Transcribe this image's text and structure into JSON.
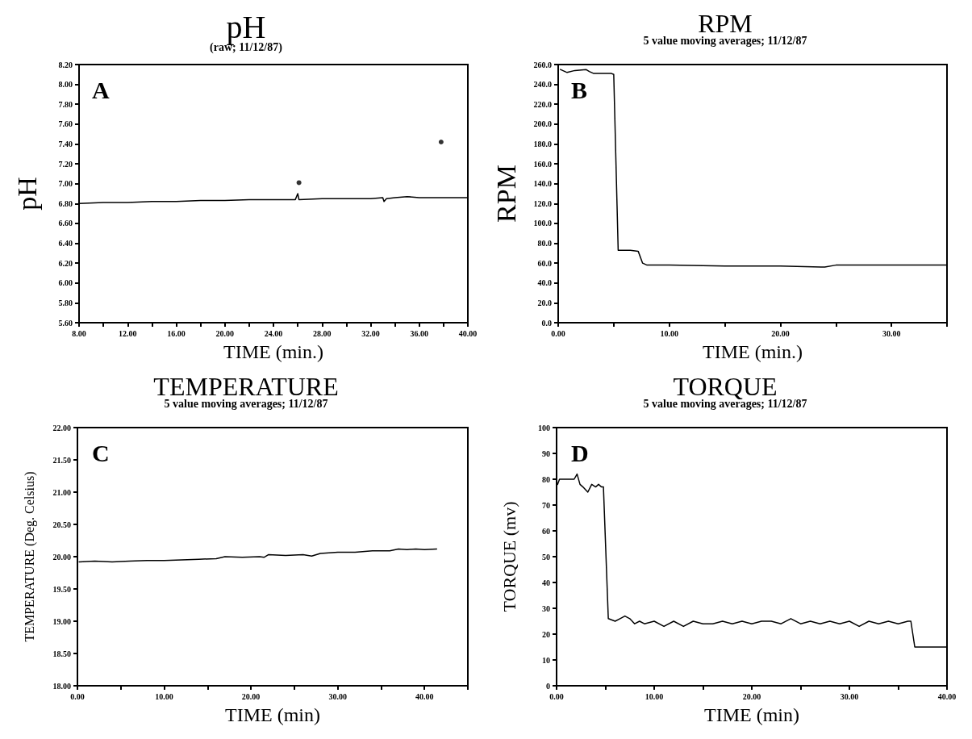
{
  "chart_data": [
    {
      "type": "line",
      "title": "pH",
      "subtitle": "(raw; 11/12/87)",
      "xlabel": "TIME (min.)",
      "ylabel": "pH",
      "annotations": [
        "A"
      ],
      "series": [
        {
          "color": "#000000",
          "x": [
            8,
            10,
            12,
            14,
            16,
            18,
            20,
            22,
            24,
            25.8,
            26,
            26.1,
            28,
            30,
            32,
            33,
            33.1,
            33.3,
            34,
            35,
            36,
            38,
            40
          ],
          "values": [
            6.8,
            6.81,
            6.81,
            6.82,
            6.82,
            6.83,
            6.83,
            6.84,
            6.84,
            6.84,
            6.9,
            6.84,
            6.85,
            6.85,
            6.85,
            6.86,
            6.82,
            6.85,
            6.86,
            6.87,
            6.86,
            6.86,
            6.86
          ]
        },
        {
          "type": "scatter",
          "color": "#000000",
          "x": [
            26.1,
            37.8
          ],
          "values": [
            7.01,
            7.42
          ]
        }
      ],
      "xlim": [
        8,
        40
      ],
      "xticks": [
        {
          "value": 8,
          "label": "8.00"
        },
        {
          "value": 10,
          "label": null
        },
        {
          "value": 12,
          "label": "12.00"
        },
        {
          "value": 14,
          "label": null
        },
        {
          "value": 16,
          "label": "16.00"
        },
        {
          "value": 18,
          "label": null
        },
        {
          "value": 20,
          "label": "20.00"
        },
        {
          "value": 22,
          "label": null
        },
        {
          "value": 24,
          "label": "24.00"
        },
        {
          "value": 26,
          "label": null
        },
        {
          "value": 28,
          "label": "28.00"
        },
        {
          "value": 30,
          "label": null
        },
        {
          "value": 32,
          "label": "32.00"
        },
        {
          "value": 34,
          "label": null
        },
        {
          "value": 36,
          "label": "36.00"
        },
        {
          "value": 38,
          "label": null
        },
        {
          "value": 40,
          "label": "40.00"
        }
      ],
      "ylim": [
        5.6,
        8.2
      ],
      "yticks": [
        {
          "value": 5.6,
          "label": "5.60"
        },
        {
          "value": 5.8,
          "label": "5.80"
        },
        {
          "value": 6,
          "label": "6.00"
        },
        {
          "value": 6.2,
          "label": "6.20"
        },
        {
          "value": 6.4,
          "label": "6.40"
        },
        {
          "value": 6.6,
          "label": "6.60"
        },
        {
          "value": 6.8,
          "label": "6.80"
        },
        {
          "value": 7,
          "label": "7.00"
        },
        {
          "value": 7.2,
          "label": "7.20"
        },
        {
          "value": 7.4,
          "label": "7.40"
        },
        {
          "value": 7.6,
          "label": "7.60"
        },
        {
          "value": 7.8,
          "label": "7.80"
        },
        {
          "value": 8,
          "label": "8.00"
        },
        {
          "value": 8.2,
          "label": "8.20"
        }
      ]
    },
    {
      "type": "line",
      "title": "RPM",
      "subtitle": "5 value moving averages; 11/12/87",
      "xlabel": "TIME (min.)",
      "ylabel": "RPM",
      "annotations": [
        "B"
      ],
      "series": [
        {
          "color": "#000000",
          "x": [
            0.2,
            0.8,
            1.5,
            2.5,
            2.8,
            3.2,
            4.8,
            5.0,
            5.4,
            6.5,
            7.2,
            7.6,
            8.0,
            10,
            15,
            20,
            24,
            25,
            27,
            30,
            35
          ],
          "values": [
            255,
            252,
            254,
            255,
            253,
            251,
            251,
            250,
            73,
            73,
            72,
            60,
            58,
            58,
            57,
            57,
            56,
            58,
            58,
            58,
            58
          ]
        }
      ],
      "xlim": [
        0,
        35
      ],
      "xticks": [
        {
          "value": 0,
          "label": "0.00"
        },
        {
          "value": 5,
          "label": null
        },
        {
          "value": 10,
          "label": "10.00"
        },
        {
          "value": 15,
          "label": null
        },
        {
          "value": 20,
          "label": "20.00"
        },
        {
          "value": 25,
          "label": null
        },
        {
          "value": 30,
          "label": "30.00"
        },
        {
          "value": 35,
          "label": null
        }
      ],
      "ylim": [
        0,
        260
      ],
      "yticks": [
        {
          "value": 0,
          "label": "0.0"
        },
        {
          "value": 20,
          "label": "20.0"
        },
        {
          "value": 40,
          "label": "40.0"
        },
        {
          "value": 60,
          "label": "60.0"
        },
        {
          "value": 80,
          "label": "80.0"
        },
        {
          "value": 100,
          "label": "100.0"
        },
        {
          "value": 120,
          "label": "120.0"
        },
        {
          "value": 140,
          "label": "140.0"
        },
        {
          "value": 160,
          "label": "160.0"
        },
        {
          "value": 180,
          "label": "180.0"
        },
        {
          "value": 200,
          "label": "200.0"
        },
        {
          "value": 220,
          "label": "220.0"
        },
        {
          "value": 240,
          "label": "240.0"
        },
        {
          "value": 260,
          "label": "260.0"
        }
      ]
    },
    {
      "type": "line",
      "title": "TEMPERATURE",
      "subtitle": "5 value moving averages; 11/12/87",
      "xlabel": "TIME (min)",
      "ylabel": "TEMPERATURE (Deg. Celsius)",
      "annotations": [
        "C"
      ],
      "series": [
        {
          "color": "#000000",
          "x": [
            0.2,
            2,
            4,
            6,
            8,
            10,
            12,
            14,
            16,
            17,
            19,
            21,
            21.5,
            22,
            24,
            26,
            27,
            28,
            30,
            32,
            34,
            36,
            37,
            38,
            39,
            40,
            41.4
          ],
          "values": [
            19.92,
            19.93,
            19.92,
            19.93,
            19.94,
            19.94,
            19.95,
            19.96,
            19.97,
            20.0,
            19.99,
            20.0,
            19.99,
            20.03,
            20.02,
            20.03,
            20.01,
            20.05,
            20.07,
            20.07,
            20.09,
            20.09,
            20.12,
            20.11,
            20.12,
            20.11,
            20.12
          ]
        }
      ],
      "xlim": [
        0,
        45
      ],
      "xticks": [
        {
          "value": 0,
          "label": "0.00"
        },
        {
          "value": 5,
          "label": null
        },
        {
          "value": 10,
          "label": "10.00"
        },
        {
          "value": 15,
          "label": null
        },
        {
          "value": 20,
          "label": "20.00"
        },
        {
          "value": 25,
          "label": null
        },
        {
          "value": 30,
          "label": "30.00"
        },
        {
          "value": 35,
          "label": null
        },
        {
          "value": 40,
          "label": "40.00"
        },
        {
          "value": 45,
          "label": null
        }
      ],
      "ylim": [
        18,
        22
      ],
      "yticks": [
        {
          "value": 18,
          "label": "18.00"
        },
        {
          "value": 18.5,
          "label": "18.50"
        },
        {
          "value": 19,
          "label": "19.00"
        },
        {
          "value": 19.5,
          "label": "19.50"
        },
        {
          "value": 20,
          "label": "20.00"
        },
        {
          "value": 20.5,
          "label": "20.50"
        },
        {
          "value": 21,
          "label": "21.00"
        },
        {
          "value": 21.5,
          "label": "21.50"
        },
        {
          "value": 22,
          "label": "22.00"
        }
      ]
    },
    {
      "type": "line",
      "title": "TORQUE",
      "subtitle": "5 value moving averages; 11/12/87",
      "xlabel": "TIME (min)",
      "ylabel": "TORQUE (mv)",
      "annotations": [
        "D"
      ],
      "series": [
        {
          "color": "#000000",
          "x": [
            0.1,
            0.3,
            1,
            1.5,
            1.8,
            2.1,
            2.4,
            2.7,
            3.2,
            3.6,
            4,
            4.3,
            4.6,
            4.8,
            5.3,
            6,
            6.5,
            7,
            7.5,
            8,
            8.5,
            9,
            10,
            11,
            12,
            13,
            14,
            15,
            16,
            17,
            18,
            19,
            20,
            21,
            22,
            23,
            24,
            25,
            26,
            27,
            28,
            29,
            30,
            31,
            32,
            33,
            34,
            35,
            36,
            36.3,
            36.7,
            38,
            40
          ],
          "values": [
            78,
            80,
            80,
            80,
            80,
            82,
            78,
            77,
            75,
            78,
            77,
            78,
            77,
            77,
            26,
            25,
            26,
            27,
            26,
            24,
            25,
            24,
            25,
            23,
            25,
            23,
            25,
            24,
            24,
            25,
            24,
            25,
            24,
            25,
            25,
            24,
            26,
            24,
            25,
            24,
            25,
            24,
            25,
            23,
            25,
            24,
            25,
            24,
            25,
            25,
            15,
            15,
            15
          ]
        }
      ],
      "xlim": [
        0,
        40
      ],
      "xticks": [
        {
          "value": 0,
          "label": "0.00"
        },
        {
          "value": 5,
          "label": null
        },
        {
          "value": 10,
          "label": "10.00"
        },
        {
          "value": 15,
          "label": null
        },
        {
          "value": 20,
          "label": "20.00"
        },
        {
          "value": 25,
          "label": null
        },
        {
          "value": 30,
          "label": "30.00"
        },
        {
          "value": 35,
          "label": null
        },
        {
          "value": 40,
          "label": "40.00"
        }
      ],
      "ylim": [
        0,
        100
      ],
      "yticks": [
        0,
        10,
        20,
        30,
        40,
        50,
        60,
        70,
        80,
        90,
        100
      ]
    }
  ]
}
